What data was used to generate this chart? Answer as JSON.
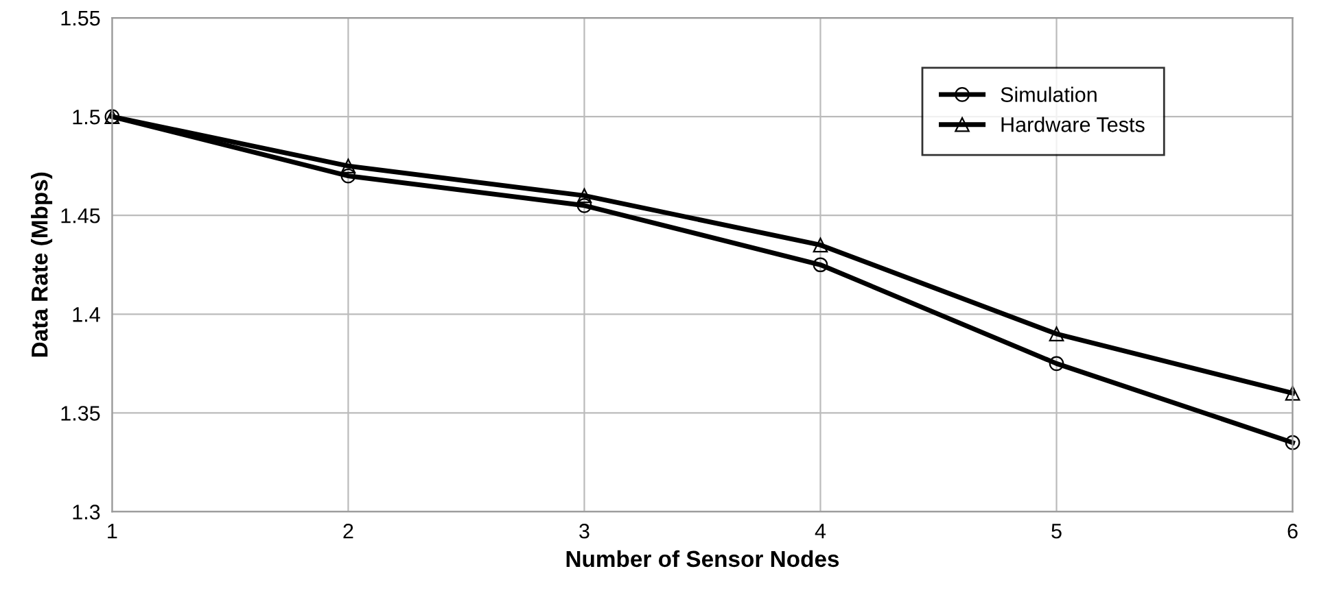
{
  "chart_data": {
    "type": "line",
    "xlabel": "Number of Sensor Nodes",
    "ylabel": "Data Rate (Mbps)",
    "x": [
      1,
      2,
      3,
      4,
      5,
      6
    ],
    "series": [
      {
        "name": "Simulation",
        "color": "#000000",
        "marker": "circle",
        "values": [
          1.5,
          1.47,
          1.455,
          1.425,
          1.375,
          1.335
        ]
      },
      {
        "name": "Hardware Tests",
        "color": "#000000",
        "marker": "triangle",
        "values": [
          1.5,
          1.475,
          1.46,
          1.435,
          1.39,
          1.36
        ]
      }
    ],
    "xlim": [
      1,
      6
    ],
    "xticks": [
      1,
      2,
      3,
      4,
      5,
      6
    ],
    "ylim": [
      1.3,
      1.55
    ],
    "yticks": [
      1.3,
      1.35,
      1.4,
      1.45,
      1.5,
      1.55
    ],
    "grid": true,
    "legend": "top right",
    "line_style": "solid"
  }
}
